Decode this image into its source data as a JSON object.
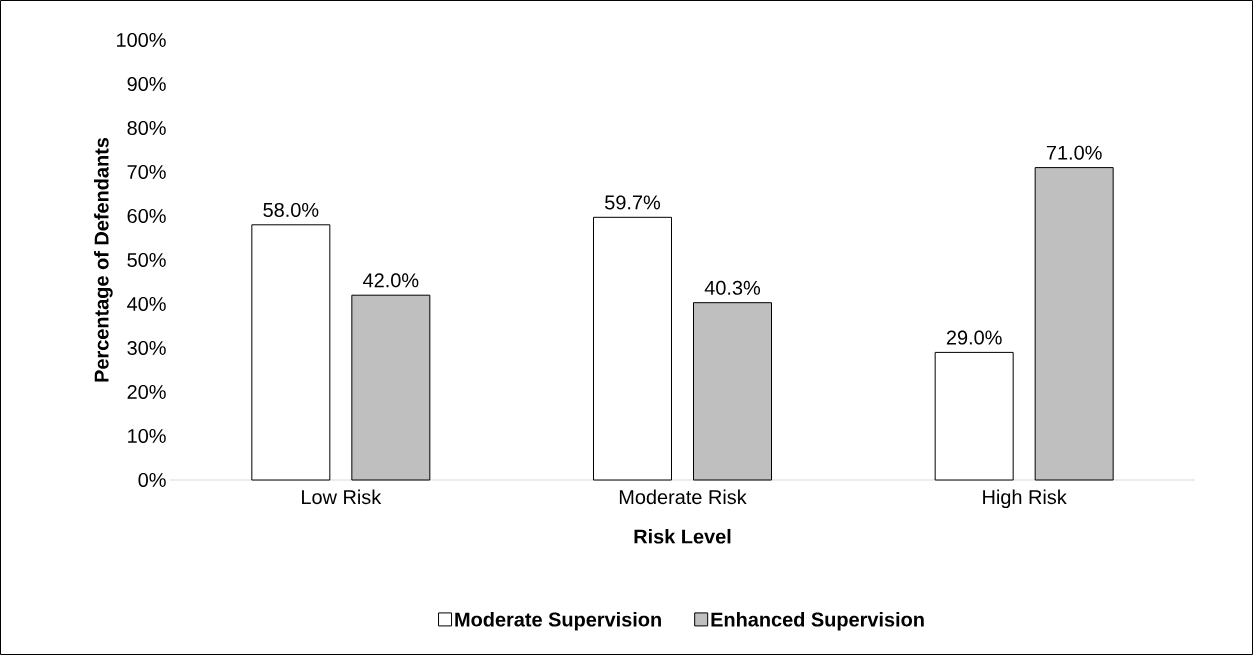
{
  "chart_data": {
    "type": "bar",
    "categories": [
      "Low Risk",
      "Moderate Risk",
      "High Risk"
    ],
    "series": [
      {
        "name": "Moderate Supervision",
        "color": "#ffffff",
        "values": [
          58.0,
          59.7,
          29.0
        ],
        "value_labels": [
          "58.0%",
          "59.7%",
          "29.0%"
        ]
      },
      {
        "name": "Enhanced Supervision",
        "color": "#bfbfbf",
        "values": [
          42.0,
          40.3,
          71.0
        ],
        "value_labels": [
          "42.0%",
          "40.3%",
          "71.0%"
        ]
      }
    ],
    "xlabel": "Risk Level",
    "ylabel": "Percentage of Defendants",
    "ylim": [
      0,
      100
    ],
    "yticks": [
      {
        "value": 0,
        "label": "0%"
      },
      {
        "value": 10,
        "label": "10%"
      },
      {
        "value": 20,
        "label": "20%"
      },
      {
        "value": 30,
        "label": "30%"
      },
      {
        "value": 40,
        "label": "40%"
      },
      {
        "value": 50,
        "label": "50%"
      },
      {
        "value": 60,
        "label": "60%"
      },
      {
        "value": 70,
        "label": "70%"
      },
      {
        "value": 80,
        "label": "80%"
      },
      {
        "value": 90,
        "label": "90%"
      },
      {
        "value": 100,
        "label": "100%"
      }
    ],
    "legend": "bottom"
  }
}
